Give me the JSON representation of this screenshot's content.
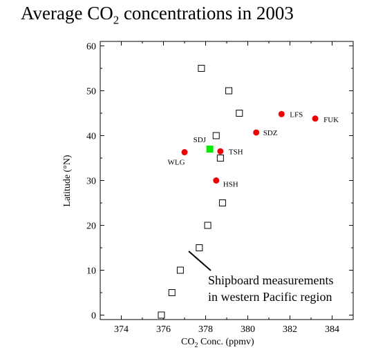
{
  "title": {
    "pre": "Average CO",
    "sub": "2",
    "post": " concentrations in 2003"
  },
  "chart_data": {
    "type": "scatter",
    "title": "Average CO2 concentrations in 2003",
    "xlabel": {
      "pre": "CO",
      "sub": "2",
      "post": " Conc. (ppmv)"
    },
    "ylabel": "Latitude (°N)",
    "xlim": [
      373,
      385
    ],
    "ylim": [
      -1,
      61
    ],
    "xticks": [
      374,
      376,
      378,
      380,
      382,
      384
    ],
    "yticks": [
      0,
      10,
      20,
      30,
      40,
      50,
      60
    ],
    "series": [
      {
        "marker": "open-square",
        "color": "#000000",
        "points": [
          {
            "x": 375.9,
            "y": 0
          },
          {
            "x": 376.4,
            "y": 5
          },
          {
            "x": 376.8,
            "y": 10
          },
          {
            "x": 377.7,
            "y": 15
          },
          {
            "x": 378.1,
            "y": 20
          },
          {
            "x": 378.8,
            "y": 25
          },
          {
            "x": 378.7,
            "y": 35
          },
          {
            "x": 378.5,
            "y": 40
          },
          {
            "x": 379.6,
            "y": 45
          },
          {
            "x": 379.1,
            "y": 50
          },
          {
            "x": 377.8,
            "y": 55
          }
        ]
      },
      {
        "marker": "filled-circle",
        "color": "#ee0000",
        "points": [
          {
            "label": "WLG",
            "x": 377.0,
            "y": 36.3
          },
          {
            "label": "TSH",
            "x": 378.7,
            "y": 36.5
          },
          {
            "label": "HSH",
            "x": 378.5,
            "y": 30.0
          },
          {
            "label": "SDZ",
            "x": 380.4,
            "y": 40.7
          },
          {
            "label": "LFS",
            "x": 381.6,
            "y": 44.8
          },
          {
            "label": "FUK",
            "x": 383.2,
            "y": 43.8
          }
        ]
      },
      {
        "marker": "filled-square",
        "color": "#00ee00",
        "points": [
          {
            "label": "SDJ",
            "x": 378.2,
            "y": 37.0
          }
        ]
      }
    ],
    "annotation": {
      "line1": "Shipboard measurements",
      "line2": "in western Pacific region"
    },
    "grid": false,
    "legend": "none"
  }
}
